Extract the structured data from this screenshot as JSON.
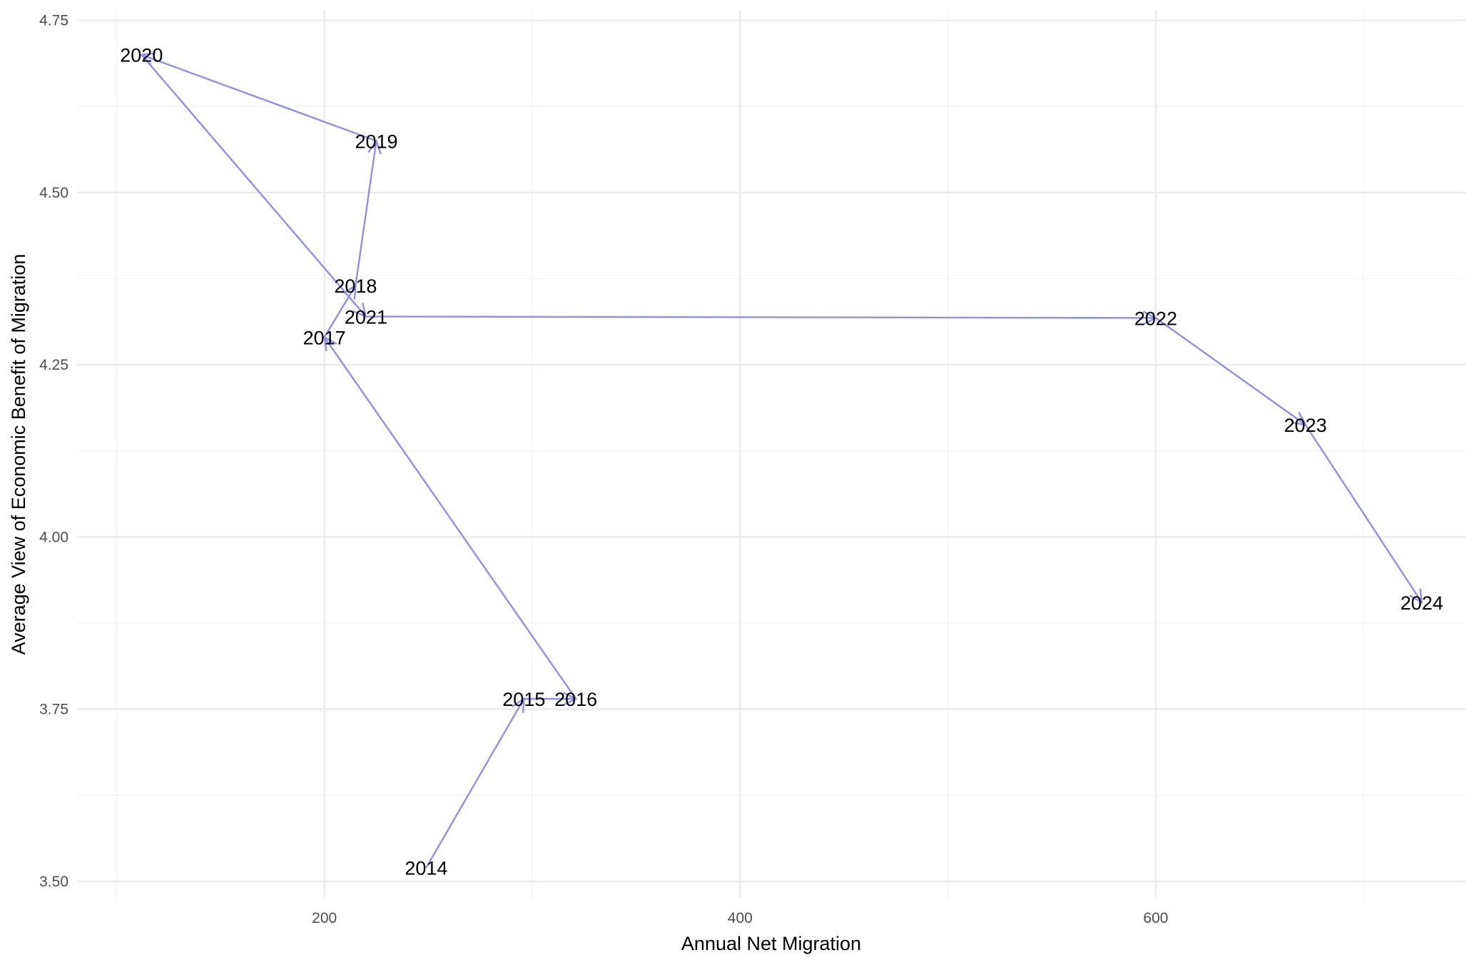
{
  "chart_data": {
    "type": "line",
    "xlabel": "Annual Net Migration",
    "ylabel": "Average View of Economic Benefit of Migration",
    "xlim": [
      81,
      749
    ],
    "ylim": [
      3.475,
      4.765
    ],
    "x_ticks": [
      200,
      400,
      600
    ],
    "x_tick_labels": [
      "200",
      "400",
      "600"
    ],
    "y_ticks": [
      3.5,
      3.75,
      4.0,
      4.25,
      4.5,
      4.75
    ],
    "y_tick_labels": [
      "3.50",
      "3.75",
      "4.00",
      "4.25",
      "4.50",
      "4.75"
    ],
    "grid": true,
    "legend": "none",
    "line_color": "#8e8ef0",
    "arrows": true,
    "points": [
      {
        "label": "2014",
        "x": 249,
        "y": 3.52
      },
      {
        "label": "2015",
        "x": 296,
        "y": 3.765
      },
      {
        "label": "2016",
        "x": 321,
        "y": 3.765
      },
      {
        "label": "2017",
        "x": 200,
        "y": 4.29
      },
      {
        "label": "2018",
        "x": 215,
        "y": 4.365
      },
      {
        "label": "2019",
        "x": 225,
        "y": 4.575
      },
      {
        "label": "2020",
        "x": 112,
        "y": 4.7
      },
      {
        "label": "2021",
        "x": 220,
        "y": 4.32
      },
      {
        "label": "2022",
        "x": 600,
        "y": 4.318
      },
      {
        "label": "2023",
        "x": 672,
        "y": 4.163
      },
      {
        "label": "2024",
        "x": 728,
        "y": 3.905
      }
    ]
  }
}
